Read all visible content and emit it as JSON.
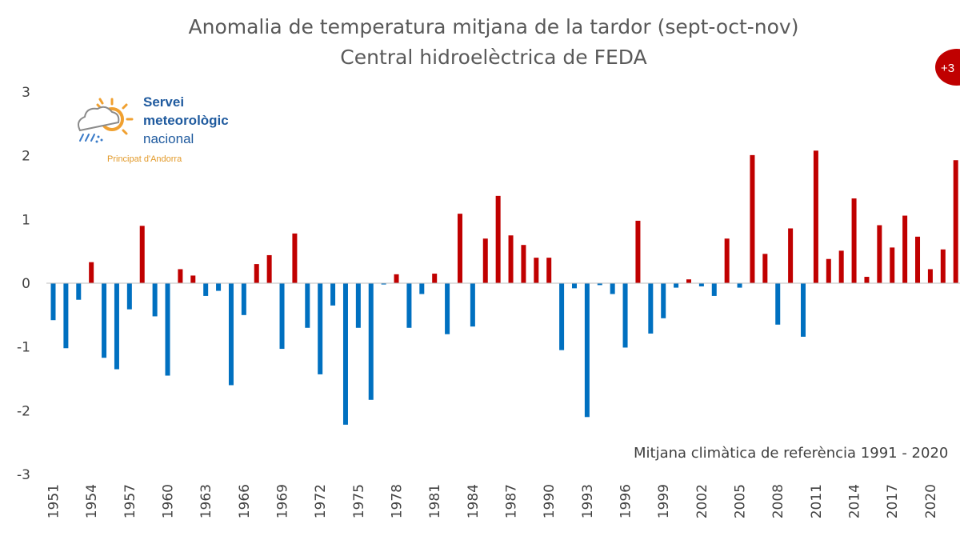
{
  "colors": {
    "positive": "#c00000",
    "negative": "#0070c0",
    "axis": "#bfbfbf",
    "badge": "#c00000"
  },
  "logo": {
    "line1": "Servei",
    "line2": "meteorològic",
    "line3": "nacional",
    "line4": "Principat d'Andorra"
  },
  "badge": {
    "text": "+3"
  },
  "chart_data": {
    "type": "bar",
    "title": "Anomalia de temperatura mitjana de la tardor (sept-oct-nov)",
    "subtitle": "Central hidroelèctrica de FEDA",
    "annotation": "Mitjana climàtica de referència 1991 - 2020",
    "xlabel": "",
    "ylabel": "",
    "ylim": [
      -3,
      3
    ],
    "yticks": [
      3,
      2,
      1,
      0,
      -1,
      -2,
      -3
    ],
    "xtick_labels": [
      "1951",
      "1954",
      "1957",
      "1960",
      "1963",
      "1966",
      "1969",
      "1972",
      "1975",
      "1978",
      "1981",
      "1984",
      "1987",
      "1990",
      "1993",
      "1996",
      "1999",
      "2002",
      "2005",
      "2008",
      "2011",
      "2014",
      "2017",
      "2020"
    ],
    "years": [
      1951,
      1952,
      1953,
      1954,
      1955,
      1956,
      1957,
      1958,
      1959,
      1960,
      1961,
      1962,
      1963,
      1964,
      1965,
      1966,
      1967,
      1968,
      1969,
      1970,
      1971,
      1972,
      1973,
      1974,
      1975,
      1976,
      1977,
      1978,
      1979,
      1980,
      1981,
      1982,
      1983,
      1984,
      1985,
      1986,
      1987,
      1988,
      1989,
      1990,
      1991,
      1992,
      1993,
      1994,
      1995,
      1996,
      1997,
      1998,
      1999,
      2000,
      2001,
      2002,
      2003,
      2004,
      2005,
      2006,
      2007,
      2008,
      2009,
      2010,
      2011,
      2012,
      2013,
      2014,
      2015,
      2016,
      2017,
      2018,
      2019,
      2020,
      2021,
      2022
    ],
    "values": [
      -0.58,
      -1.02,
      -0.26,
      0.33,
      -1.17,
      -1.35,
      -0.41,
      0.9,
      -0.52,
      -1.45,
      0.22,
      0.12,
      -0.2,
      -0.12,
      -1.6,
      -0.5,
      0.3,
      0.44,
      -1.03,
      0.78,
      -0.7,
      -1.43,
      -0.35,
      -2.22,
      -0.7,
      -1.83,
      -0.02,
      0.14,
      -0.7,
      -0.17,
      0.15,
      -0.8,
      1.09,
      -0.68,
      0.7,
      1.37,
      0.75,
      0.6,
      0.4,
      0.4,
      -1.05,
      -0.08,
      -2.1,
      -0.03,
      -0.17,
      -1.01,
      0.98,
      -0.79,
      -0.55,
      -0.07,
      0.06,
      -0.05,
      -0.2,
      0.7,
      -0.07,
      2.01,
      0.46,
      -0.65,
      0.86,
      -0.84,
      2.08,
      0.38,
      0.51,
      1.33,
      0.1,
      0.91,
      0.56,
      1.06,
      0.73,
      0.22,
      0.53,
      1.93
    ]
  }
}
